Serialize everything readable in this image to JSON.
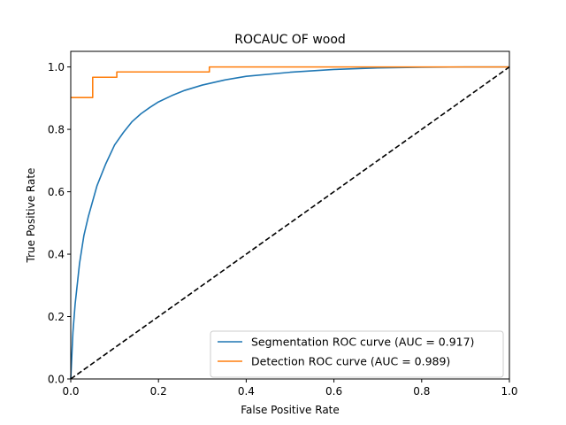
{
  "chart_data": {
    "type": "line",
    "title": "ROCAUC OF wood",
    "xlabel": "False Positive Rate",
    "ylabel": "True Positive Rate",
    "xlim": [
      0.0,
      1.0
    ],
    "ylim": [
      0.0,
      1.05
    ],
    "x_ticks": [
      "0.0",
      "0.2",
      "0.4",
      "0.6",
      "0.8",
      "1.0"
    ],
    "y_ticks": [
      "0.0",
      "0.2",
      "0.4",
      "0.6",
      "0.8",
      "1.0"
    ],
    "grid": false,
    "legend_position": "lower-right",
    "series": [
      {
        "name": "Segmentation ROC curve (AUC = 0.917)",
        "color": "#1f77b4",
        "style": "solid",
        "x": [
          0.0,
          0.005,
          0.01,
          0.02,
          0.03,
          0.04,
          0.05,
          0.06,
          0.08,
          0.1,
          0.12,
          0.14,
          0.16,
          0.18,
          0.2,
          0.23,
          0.26,
          0.3,
          0.35,
          0.4,
          0.5,
          0.6,
          0.7,
          0.8,
          0.9,
          1.0
        ],
        "y": [
          0.0,
          0.15,
          0.24,
          0.37,
          0.46,
          0.52,
          0.57,
          0.62,
          0.69,
          0.75,
          0.79,
          0.825,
          0.85,
          0.87,
          0.888,
          0.908,
          0.925,
          0.942,
          0.958,
          0.97,
          0.983,
          0.992,
          0.997,
          0.999,
          1.0,
          1.0
        ]
      },
      {
        "name": "Detection ROC curve (AUC = 0.989)",
        "color": "#ff7f0e",
        "style": "step",
        "x": [
          0.0,
          0.05,
          0.05,
          0.105,
          0.105,
          0.316,
          0.316,
          1.0
        ],
        "y": [
          0.902,
          0.902,
          0.967,
          0.967,
          0.984,
          0.984,
          1.0,
          1.0
        ]
      },
      {
        "name": "",
        "color": "#000000",
        "style": "dashed",
        "x": [
          0.0,
          1.0
        ],
        "y": [
          0.0,
          1.0
        ]
      }
    ]
  }
}
